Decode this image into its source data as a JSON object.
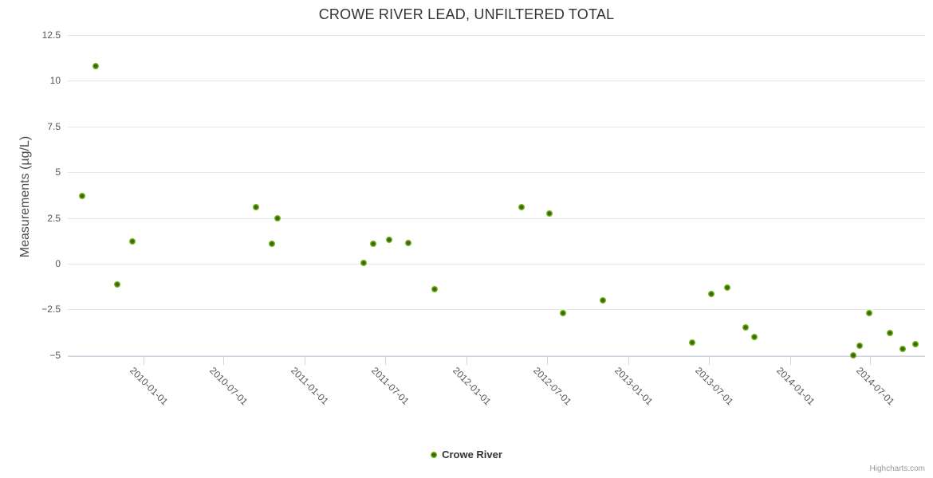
{
  "credits": {
    "label": "Highcharts.com"
  },
  "colors": {
    "point_green_outer": "#85c02c",
    "point_green_core": "#3a640e",
    "gridline": "#e6e6e6",
    "axis_line": "#ccd6eb",
    "title_text": "#333333",
    "label_text": "#555555",
    "credits_text": "#999999"
  },
  "chart_data": {
    "type": "scatter",
    "title": "CROWE RIVER LEAD, UNFILTERED TOTAL",
    "xlabel": "",
    "ylabel": "Measurements (µg/L)",
    "ylim": [
      -5.1,
      12.9
    ],
    "grid": true,
    "legend_position": "bottom-center",
    "yticks": [
      12.5,
      10,
      7.5,
      5,
      2.5,
      0,
      -2.5,
      -5
    ],
    "xticks": [
      "2010-01-01",
      "2010-07-01",
      "2011-01-01",
      "2011-07-01",
      "2012-01-01",
      "2012-07-01",
      "2013-01-01",
      "2013-07-01",
      "2014-01-01",
      "2014-07-01"
    ],
    "series": [
      {
        "name": "Crowe River",
        "color": "#6cae17",
        "data": [
          [
            "2009-08-17",
            3.7
          ],
          [
            "2009-09-16",
            10.8
          ],
          [
            "2009-11-03",
            -1.15
          ],
          [
            "2009-12-07",
            1.2
          ],
          [
            "2010-09-13",
            3.1
          ],
          [
            "2010-10-19",
            1.1
          ],
          [
            "2010-11-01",
            2.5
          ],
          [
            "2011-05-14",
            0.05
          ],
          [
            "2011-06-05",
            1.1
          ],
          [
            "2011-07-10",
            1.3
          ],
          [
            "2011-08-22",
            1.15
          ],
          [
            "2011-10-22",
            -1.4
          ],
          [
            "2012-05-04",
            3.1
          ],
          [
            "2012-07-07",
            2.75
          ],
          [
            "2012-08-06",
            -2.7
          ],
          [
            "2012-11-04",
            -2.0
          ],
          [
            "2013-05-25",
            -4.3
          ],
          [
            "2013-07-07",
            -1.65
          ],
          [
            "2013-08-13",
            -1.3
          ],
          [
            "2013-09-22",
            -3.5
          ],
          [
            "2013-10-13",
            -4.0
          ],
          [
            "2014-05-24",
            -5.0
          ],
          [
            "2014-06-07",
            -4.5
          ],
          [
            "2014-06-29",
            -2.7
          ],
          [
            "2014-08-15",
            -3.8
          ],
          [
            "2014-09-12",
            -4.65
          ],
          [
            "2014-10-11",
            -4.4
          ]
        ]
      }
    ]
  }
}
